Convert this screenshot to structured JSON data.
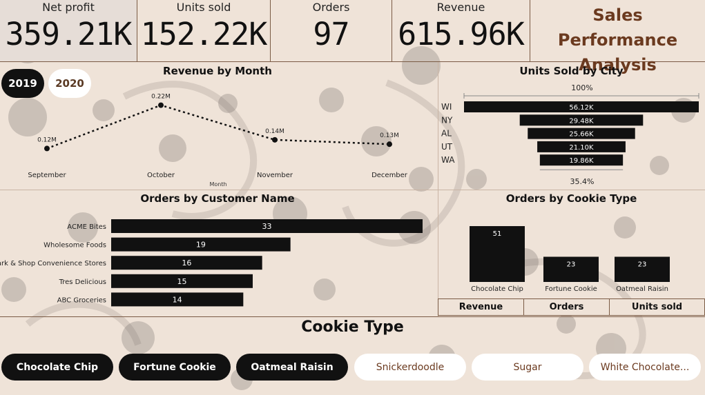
{
  "kpis": [
    {
      "label": "Net profit",
      "value": "359.21K"
    },
    {
      "label": "Units sold",
      "value": "152.22K"
    },
    {
      "label": "Orders",
      "value": "97"
    },
    {
      "label": "Revenue",
      "value": "615.96K"
    }
  ],
  "title_line1": "Sales Performance",
  "title_line2": "Analysis",
  "years": [
    {
      "label": "2019",
      "selected": true
    },
    {
      "label": "2020",
      "selected": false
    }
  ],
  "colors": {
    "bar": "#111111",
    "accent": "#6b3a1f",
    "background": "#efe3d8"
  },
  "revenue_by_month": {
    "title": "Revenue by Month",
    "xlabel": "Month",
    "chart_data": {
      "type": "line",
      "title": "Revenue by Month",
      "xlabel": "Month",
      "ylabel": "",
      "categories": [
        "September",
        "October",
        "November",
        "December"
      ],
      "values": [
        0.12,
        0.22,
        0.14,
        0.13
      ],
      "labels": [
        "0.12M",
        "0.22M",
        "0.14M",
        "0.13M"
      ],
      "ylim": [
        0.1,
        0.24
      ]
    }
  },
  "units_by_city": {
    "title": "Units Sold by City",
    "top_label": "100%",
    "bottom_label": "35.4%",
    "chart_data": {
      "type": "bar",
      "title": "Units Sold by City",
      "categories": [
        "WI",
        "NY",
        "AL",
        "UT",
        "WA"
      ],
      "values": [
        56.12,
        29.48,
        25.66,
        21.1,
        19.86
      ],
      "labels": [
        "56.12K",
        "29.48K",
        "25.66K",
        "21.10K",
        "19.86K"
      ]
    }
  },
  "orders_by_customer": {
    "title": "Orders by Customer Name",
    "chart_data": {
      "type": "bar",
      "title": "Orders by Customer Name",
      "categories": [
        "ACME Bites",
        "Wholesome Foods",
        "Park & Shop Convenience Stores",
        "Tres Delicious",
        "ABC Groceries"
      ],
      "values": [
        33,
        19,
        16,
        15,
        14
      ]
    }
  },
  "orders_by_cookie": {
    "title": "Orders by Cookie Type",
    "chart_data": {
      "type": "bar",
      "title": "Orders by Cookie Type",
      "categories": [
        "Chocolate Chip",
        "Fortune Cookie",
        "Oatmeal Raisin"
      ],
      "values": [
        51,
        23,
        23
      ]
    }
  },
  "metric_toggles": [
    "Revenue",
    "Orders",
    "Units sold"
  ],
  "cookie_slicer": {
    "title": "Cookie Type",
    "items": [
      {
        "label": "Chocolate Chip",
        "selected": true
      },
      {
        "label": "Fortune Cookie",
        "selected": true
      },
      {
        "label": "Oatmeal Raisin",
        "selected": true
      },
      {
        "label": "Snickerdoodle",
        "selected": false
      },
      {
        "label": "Sugar",
        "selected": false
      },
      {
        "label": "White Chocolate...",
        "selected": false
      }
    ]
  }
}
